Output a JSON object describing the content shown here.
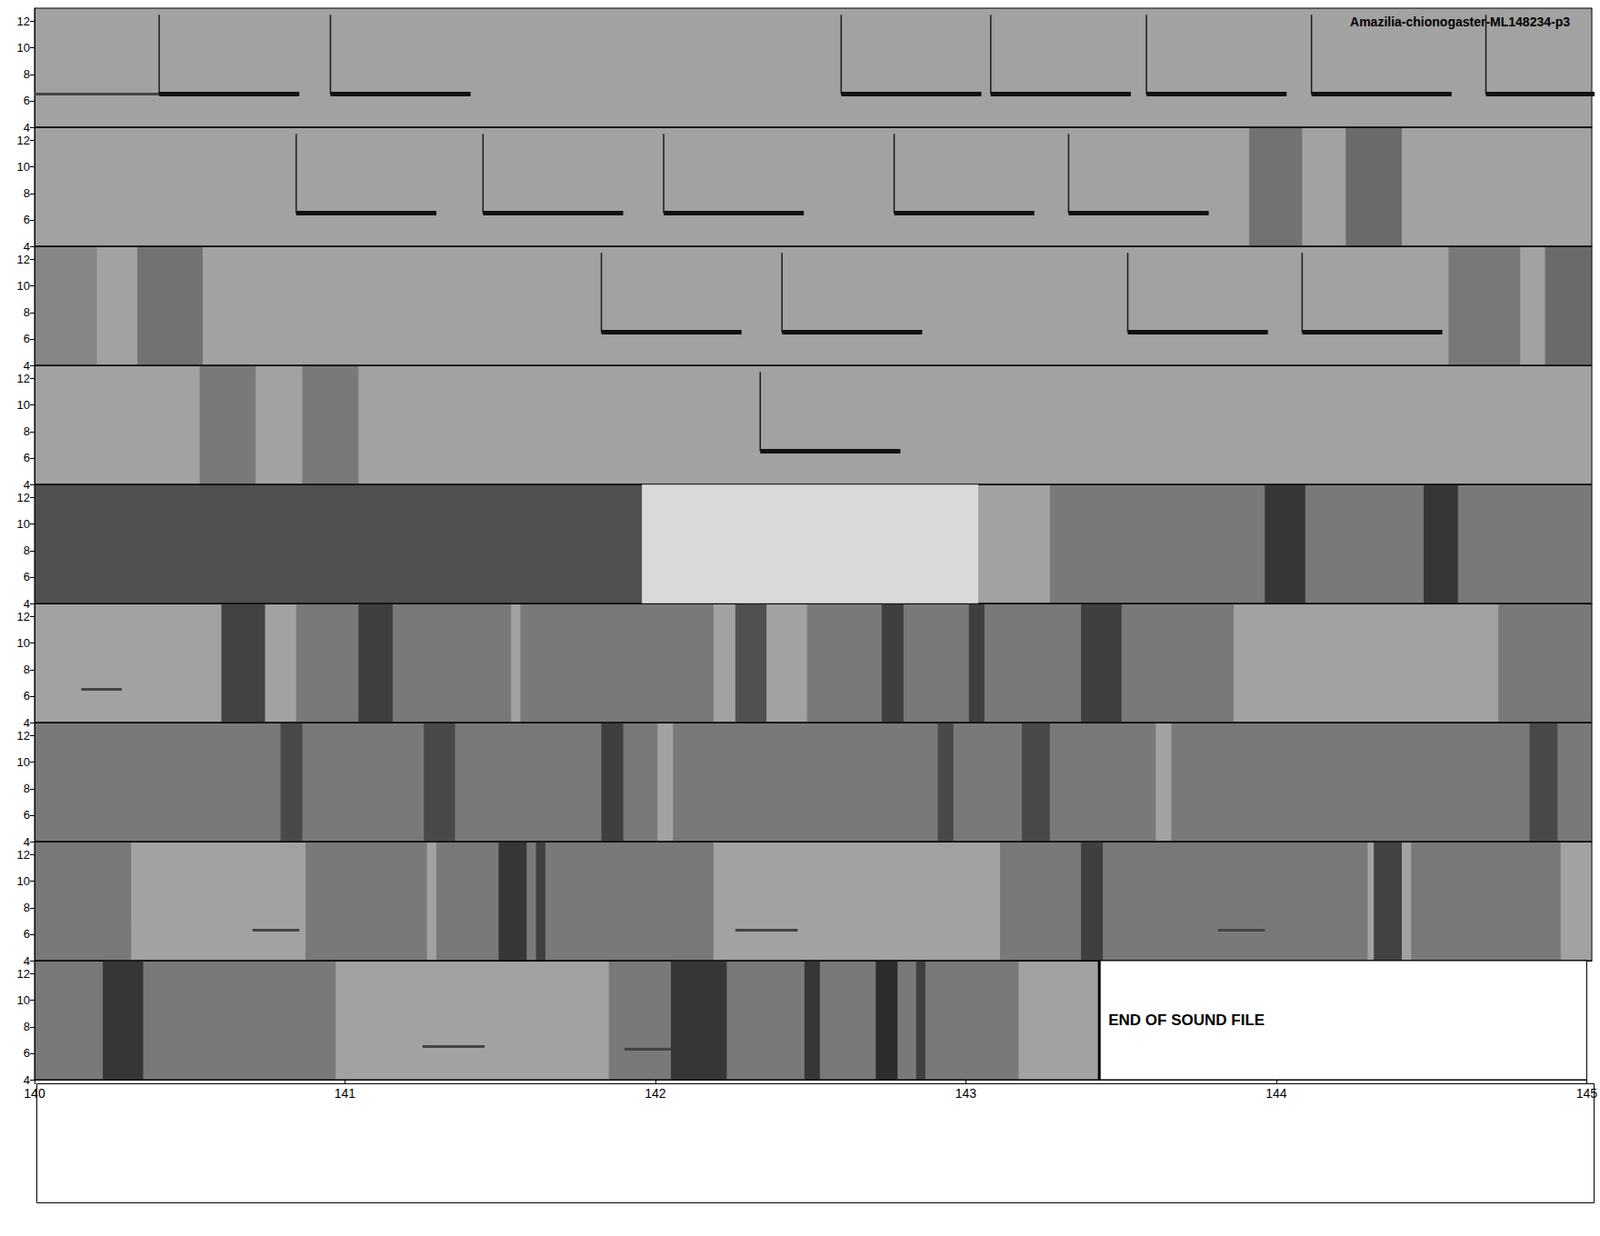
{
  "chart_data": {
    "type": "spectrogram",
    "title": "Amazilia-chionogaster-ML148234-p3",
    "ylim": [
      4,
      13
    ],
    "yticks": [
      4,
      6,
      8,
      10,
      12
    ],
    "xticks": [
      140,
      141,
      142,
      143,
      144,
      145
    ],
    "end_of_file": {
      "start": 143.43,
      "label": "END OF SOUND FILE"
    },
    "rows": [
      {
        "xlim": [
          100,
          105
        ],
        "notes": [
          {
            "start": 100.4,
            "end": 100.85,
            "f_low": 6.5,
            "f_high": 12.5
          },
          {
            "start": 100.95,
            "end": 101.4,
            "f_low": 6.5,
            "f_high": 12.5
          },
          {
            "start": 102.59,
            "end": 103.04,
            "f_low": 6.5,
            "f_high": 12.5
          },
          {
            "start": 103.07,
            "end": 103.52,
            "f_low": 6.5,
            "f_high": 12.5
          },
          {
            "start": 103.57,
            "end": 104.02,
            "f_low": 6.5,
            "f_high": 12.5
          },
          {
            "start": 104.1,
            "end": 104.55,
            "f_low": 6.5,
            "f_high": 12.5
          },
          {
            "start": 104.66,
            "end": 105.11,
            "f_low": 6.5,
            "f_high": 12.5
          }
        ],
        "tones": [
          [
            100.0,
            100.4,
            6.5
          ]
        ],
        "bursts": [],
        "light": []
      },
      {
        "xlim": [
          105,
          110
        ],
        "notes": [
          {
            "start": 105.84,
            "end": 106.29,
            "f_low": 6.5,
            "f_high": 12.5
          },
          {
            "start": 106.44,
            "end": 106.89,
            "f_low": 6.5,
            "f_high": 12.5
          },
          {
            "start": 107.02,
            "end": 107.47,
            "f_low": 6.5,
            "f_high": 12.5
          },
          {
            "start": 107.76,
            "end": 108.21,
            "f_low": 6.5,
            "f_high": 12.5
          },
          {
            "start": 108.32,
            "end": 108.77,
            "f_low": 6.5,
            "f_high": 12.5
          }
        ],
        "tones": [],
        "bursts": [
          [
            108.9,
            109.07,
            0.35
          ],
          [
            109.21,
            109.39,
            0.4
          ]
        ],
        "light": []
      },
      {
        "xlim": [
          110,
          115
        ],
        "notes": [
          {
            "start": 111.82,
            "end": 112.27,
            "f_low": 6.5,
            "f_high": 12.5
          },
          {
            "start": 112.4,
            "end": 112.85,
            "f_low": 6.5,
            "f_high": 12.5
          },
          {
            "start": 113.51,
            "end": 113.96,
            "f_low": 6.5,
            "f_high": 12.5
          },
          {
            "start": 114.07,
            "end": 114.52,
            "f_low": 6.5,
            "f_high": 12.5
          }
        ],
        "tones": [],
        "bursts": [
          [
            110.0,
            110.2,
            0.2
          ],
          [
            110.33,
            110.54,
            0.35
          ],
          [
            114.54,
            114.77,
            0.3
          ],
          [
            114.85,
            115.0,
            0.4
          ]
        ],
        "light": []
      },
      {
        "xlim": [
          115,
          120
        ],
        "notes": [
          {
            "start": 117.33,
            "end": 117.78,
            "f_low": 6.5,
            "f_high": 12.5
          }
        ],
        "tones": [],
        "bursts": [
          [
            115.53,
            115.71,
            0.3
          ],
          [
            115.86,
            116.04,
            0.3
          ]
        ],
        "light": []
      },
      {
        "xlim": [
          120,
          125
        ],
        "notes": [],
        "tones": [],
        "bursts": [
          [
            120.0,
            121.95,
            0.6
          ],
          [
            123.26,
            125.0,
            0.3
          ],
          [
            123.95,
            124.08,
            0.7
          ],
          [
            124.46,
            124.57,
            0.7
          ]
        ],
        "light": [
          [
            121.95,
            123.03
          ]
        ]
      },
      {
        "xlim": [
          125,
          130
        ],
        "notes": [],
        "tones": [
          [
            125.15,
            125.28,
            6.5
          ]
        ],
        "bursts": [
          [
            125.6,
            125.74,
            0.7
          ],
          [
            125.84,
            126.53,
            0.3
          ],
          [
            126.04,
            126.15,
            0.6
          ],
          [
            126.56,
            127.18,
            0.3
          ],
          [
            127.25,
            127.35,
            0.6
          ],
          [
            127.48,
            128.85,
            0.3
          ],
          [
            127.72,
            127.79,
            0.6
          ],
          [
            128.0,
            128.05,
            0.6
          ],
          [
            128.36,
            128.49,
            0.6
          ],
          [
            129.7,
            130.0,
            0.3
          ]
        ],
        "light": []
      },
      {
        "xlim": [
          130,
          135
        ],
        "notes": [],
        "tones": [],
        "bursts": [
          [
            130.0,
            132.0,
            0.3
          ],
          [
            132.05,
            133.6,
            0.3
          ],
          [
            133.65,
            135.0,
            0.3
          ],
          [
            130.79,
            130.86,
            0.5
          ],
          [
            131.25,
            131.35,
            0.5
          ],
          [
            131.82,
            131.89,
            0.6
          ],
          [
            132.9,
            132.95,
            0.5
          ],
          [
            133.17,
            133.26,
            0.5
          ],
          [
            134.8,
            134.89,
            0.5
          ]
        ],
        "light": []
      },
      {
        "xlim": [
          135,
          140
        ],
        "notes": [],
        "tones": [
          [
            135.7,
            135.85,
            6.3
          ],
          [
            137.25,
            137.45,
            6.3
          ],
          [
            138.8,
            138.95,
            6.3
          ]
        ],
        "bursts": [
          [
            135.0,
            135.31,
            0.3
          ],
          [
            135.87,
            136.26,
            0.3
          ],
          [
            136.29,
            137.18,
            0.3
          ],
          [
            136.49,
            136.58,
            0.7
          ],
          [
            136.61,
            136.64,
            0.6
          ],
          [
            138.1,
            139.28,
            0.3
          ],
          [
            138.36,
            138.43,
            0.6
          ],
          [
            139.3,
            139.39,
            0.7
          ],
          [
            139.42,
            139.9,
            0.3
          ]
        ],
        "light": []
      },
      {
        "xlim": [
          140,
          145
        ],
        "notes": [],
        "tones": [
          [
            141.25,
            141.45,
            6.5
          ],
          [
            141.9,
            142.05,
            6.3
          ]
        ],
        "bursts": [
          [
            140.0,
            140.97,
            0.3
          ],
          [
            140.22,
            140.35,
            0.7
          ],
          [
            141.85,
            143.17,
            0.3
          ],
          [
            142.05,
            142.23,
            0.7
          ],
          [
            142.48,
            142.53,
            0.7
          ],
          [
            142.71,
            142.78,
            0.8
          ],
          [
            142.84,
            142.87,
            0.6
          ]
        ],
        "light": []
      }
    ]
  }
}
